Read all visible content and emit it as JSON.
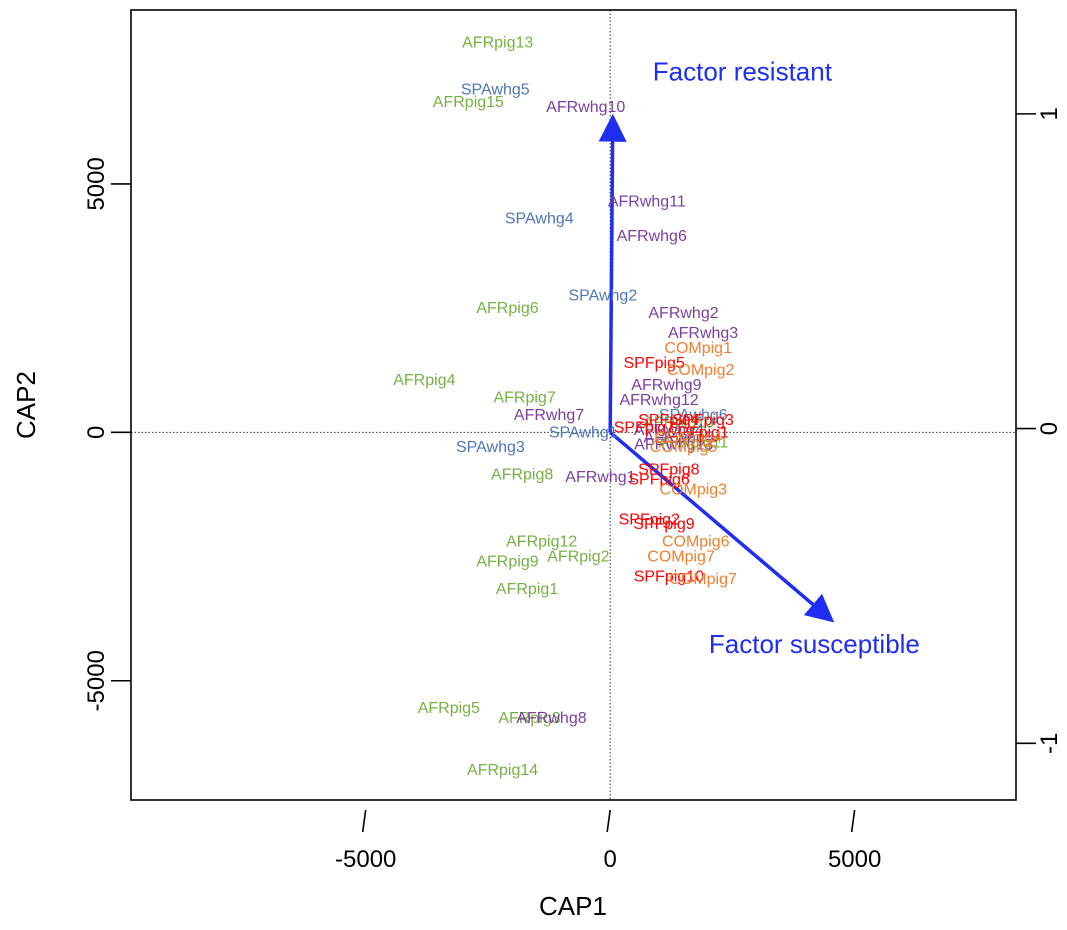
{
  "chart_data": {
    "type": "scatter",
    "xlabel": "CAP1",
    "ylabel": "CAP2",
    "xlim": [
      -9800,
      8300
    ],
    "ylim": [
      -7400,
      8500
    ],
    "right_axis_lim": [
      -1.18,
      1.33
    ],
    "x_ticks": [
      {
        "value": -5000,
        "label": "-5000"
      },
      {
        "value": 0,
        "label": "0"
      },
      {
        "value": 5000,
        "label": "5000"
      }
    ],
    "y_ticks": [
      {
        "value": -5000,
        "label": "-5000"
      },
      {
        "value": 0,
        "label": "0"
      },
      {
        "value": 5000,
        "label": "5000"
      }
    ],
    "right_ticks": [
      {
        "value": -1,
        "label": "-1"
      },
      {
        "value": 0,
        "label": "0"
      },
      {
        "value": 1,
        "label": "1"
      }
    ],
    "reference_lines": {
      "x": 0,
      "y": 0,
      "style": "dotted"
    },
    "group_colors": {
      "AFRpig": "#76b043",
      "SPAwhg": "#4f77b8",
      "AFRwhg": "#7b3f9e",
      "SPFpig": "#ff0000",
      "COMpig": "#ef8030"
    },
    "points": [
      {
        "label": "AFRpig13",
        "group": "AFRpig",
        "x": -2300,
        "y": 7850
      },
      {
        "label": "AFRpig15",
        "group": "AFRpig",
        "x": -2900,
        "y": 6650
      },
      {
        "label": "AFRpig6",
        "group": "AFRpig",
        "x": -2100,
        "y": 2500
      },
      {
        "label": "AFRpig4",
        "group": "AFRpig",
        "x": -3800,
        "y": 1050
      },
      {
        "label": "AFRpig7",
        "group": "AFRpig",
        "x": -1750,
        "y": 700
      },
      {
        "label": "AFRpig8",
        "group": "AFRpig",
        "x": -1800,
        "y": -850
      },
      {
        "label": "AFRpig12",
        "group": "AFRpig",
        "x": -1400,
        "y": -2200
      },
      {
        "label": "AFRpig9",
        "group": "AFRpig",
        "x": -2100,
        "y": -2600
      },
      {
        "label": "AFRpig2",
        "group": "AFRpig",
        "x": -650,
        "y": -2500
      },
      {
        "label": "AFRpig1",
        "group": "AFRpig",
        "x": -1700,
        "y": -3150
      },
      {
        "label": "AFRpig5",
        "group": "AFRpig",
        "x": -3300,
        "y": -5550
      },
      {
        "label": "AFRpig3",
        "group": "AFRpig",
        "x": -1650,
        "y": -5750
      },
      {
        "label": "AFRpig14",
        "group": "AFRpig",
        "x": -2200,
        "y": -6800
      },
      {
        "label": "AFRpig10",
        "group": "AFRpig",
        "x": 1400,
        "y": 200
      },
      {
        "label": "AFRpig11",
        "group": "AFRpig",
        "x": 1700,
        "y": -200
      },
      {
        "label": "SPAwhg5",
        "group": "SPAwhg",
        "x": -2350,
        "y": 6900
      },
      {
        "label": "SPAwhg4",
        "group": "SPAwhg",
        "x": -1450,
        "y": 4300
      },
      {
        "label": "SPAwhg2",
        "group": "SPAwhg",
        "x": -150,
        "y": 2750
      },
      {
        "label": "SPAwhg3",
        "group": "SPAwhg",
        "x": -2450,
        "y": -300
      },
      {
        "label": "SPAwhg1",
        "group": "SPAwhg",
        "x": -550,
        "y": 0
      },
      {
        "label": "SPAwhg6",
        "group": "SPAwhg",
        "x": 1700,
        "y": 350
      },
      {
        "label": "AFRwhg10",
        "group": "AFRwhg",
        "x": -500,
        "y": 6550
      },
      {
        "label": "AFRwhg11",
        "group": "AFRwhg",
        "x": 750,
        "y": 4650
      },
      {
        "label": "AFRwhg6",
        "group": "AFRwhg",
        "x": 850,
        "y": 3950
      },
      {
        "label": "AFRwhg2",
        "group": "AFRwhg",
        "x": 1500,
        "y": 2400
      },
      {
        "label": "AFRwhg3",
        "group": "AFRwhg",
        "x": 1900,
        "y": 2000
      },
      {
        "label": "AFRwhg9",
        "group": "AFRwhg",
        "x": 1150,
        "y": 950
      },
      {
        "label": "AFRwhg12",
        "group": "AFRwhg",
        "x": 1000,
        "y": 650
      },
      {
        "label": "AFRwhg7",
        "group": "AFRwhg",
        "x": -1250,
        "y": 350
      },
      {
        "label": "AFRwhg4",
        "group": "AFRwhg",
        "x": 1200,
        "y": 50
      },
      {
        "label": "AFRwhg5",
        "group": "AFRwhg",
        "x": 1400,
        "y": -100
      },
      {
        "label": "AFRwhg13",
        "group": "AFRwhg",
        "x": 1300,
        "y": -250
      },
      {
        "label": "AFRwhg1",
        "group": "AFRwhg",
        "x": -200,
        "y": -900
      },
      {
        "label": "AFRwhg8",
        "group": "AFRwhg",
        "x": -1200,
        "y": -5750
      },
      {
        "label": "SPFpig5",
        "group": "SPFpig",
        "x": 900,
        "y": 1400
      },
      {
        "label": "SPFpig3",
        "group": "SPFpig",
        "x": 1900,
        "y": 250
      },
      {
        "label": "SPFpig4",
        "group": "SPFpig",
        "x": 1200,
        "y": 250
      },
      {
        "label": "SPFpig1",
        "group": "SPFpig",
        "x": 1800,
        "y": 0
      },
      {
        "label": "SPFpig7",
        "group": "SPFpig",
        "x": 700,
        "y": 100
      },
      {
        "label": "SPFpig8",
        "group": "SPFpig",
        "x": 1200,
        "y": -750
      },
      {
        "label": "SPFpig6",
        "group": "SPFpig",
        "x": 1000,
        "y": -950
      },
      {
        "label": "SPFpig2",
        "group": "SPFpig",
        "x": 800,
        "y": -1750
      },
      {
        "label": "SPFpig9",
        "group": "SPFpig",
        "x": 1100,
        "y": -1850
      },
      {
        "label": "SPFpig10",
        "group": "SPFpig",
        "x": 1200,
        "y": -2900
      },
      {
        "label": "COMpig1",
        "group": "COMpig",
        "x": 1800,
        "y": 1700
      },
      {
        "label": "COMpig2",
        "group": "COMpig",
        "x": 1850,
        "y": 1250
      },
      {
        "label": "COMpig4",
        "group": "COMpig",
        "x": 1600,
        "y": -100
      },
      {
        "label": "COMpig5",
        "group": "COMpig",
        "x": 1500,
        "y": -300
      },
      {
        "label": "COMpig3",
        "group": "COMpig",
        "x": 1700,
        "y": -1150
      },
      {
        "label": "COMpig6",
        "group": "COMpig",
        "x": 1750,
        "y": -2200
      },
      {
        "label": "COMpig7",
        "group": "COMpig",
        "x": 1450,
        "y": -2500
      },
      {
        "label": "COMpig7",
        "group": "COMpig",
        "x": 1900,
        "y": -2950
      }
    ],
    "vectors": [
      {
        "label": "Factor resistant",
        "x": 0.0083,
        "y": 0.99,
        "color": "#1f2ef0"
      },
      {
        "label": "Factor susceptible",
        "x": 0.695,
        "y": -0.59,
        "color": "#1f2ef0"
      }
    ],
    "vector_origin": {
      "x": 0,
      "y": 0
    }
  }
}
